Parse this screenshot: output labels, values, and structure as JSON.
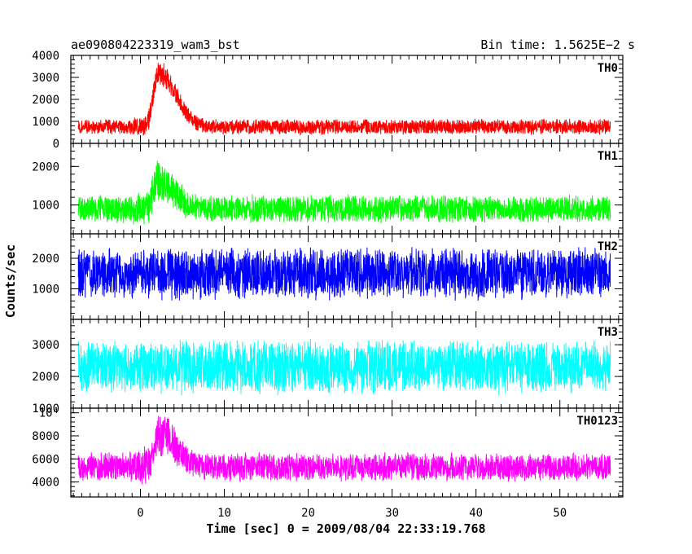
{
  "header": {
    "title": "ae090804223319_wam3_bst",
    "bin_time": "Bin time: 1.5625E−2 s"
  },
  "chart_data": {
    "type": "line",
    "xlabel": "Time [sec] 0 = 2009/08/04 22:33:19.768",
    "ylabel": "Counts/sec",
    "xlim": [
      -8.3,
      57.5
    ],
    "x_ticks": [
      0,
      10,
      20,
      30,
      40,
      50
    ],
    "data_x_range": [
      -7.4,
      56.0
    ],
    "grid": false,
    "panels": [
      {
        "name": "TH0",
        "color": "#ff0000",
        "ylim": [
          0,
          4000
        ],
        "y_ticks": [
          {
            "v": 0,
            "label": "0"
          },
          {
            "v": 1000,
            "label": "1000"
          },
          {
            "v": 2000,
            "label": "2000"
          },
          {
            "v": 3000,
            "label": "3000"
          },
          {
            "v": 4000,
            "label": "4000"
          }
        ],
        "baseline_mean": 750,
        "noise_half_range": 380,
        "burst": {
          "peak_time": 2.2,
          "peak_value": 3200,
          "rise_width": 0.9,
          "decay_width": 2.8
        }
      },
      {
        "name": "TH1",
        "color": "#00ff00",
        "ylim": [
          250,
          2600
        ],
        "y_ticks": [
          {
            "v": 1000,
            "label": "1000"
          },
          {
            "v": 2000,
            "label": "2000"
          }
        ],
        "baseline_mean": 900,
        "noise_half_range": 380,
        "burst": {
          "peak_time": 2.2,
          "peak_value": 1650,
          "rise_width": 0.9,
          "decay_width": 2.5
        }
      },
      {
        "name": "TH2",
        "color": "#0000ff",
        "ylim": [
          0,
          2800
        ],
        "y_ticks": [
          {
            "v": 1000,
            "label": "1000"
          },
          {
            "v": 2000,
            "label": "2000"
          }
        ],
        "baseline_mean": 1500,
        "noise_half_range": 900,
        "burst": null
      },
      {
        "name": "TH3",
        "color": "#00ffff",
        "ylim": [
          1000,
          3800
        ],
        "y_ticks": [
          {
            "v": 1000,
            "label": "1000"
          },
          {
            "v": 2000,
            "label": "2000"
          },
          {
            "v": 3000,
            "label": "3000"
          }
        ],
        "baseline_mean": 2300,
        "noise_half_range": 900,
        "burst": null
      },
      {
        "name": "TH0123",
        "color": "#ff00ff",
        "ylim": [
          2700,
          10400
        ],
        "y_ticks": [
          {
            "v": 4000,
            "label": "4000"
          },
          {
            "v": 6000,
            "label": "6000"
          },
          {
            "v": 8000,
            "label": "8000"
          },
          {
            "v": 10000,
            "label": "10⁴"
          }
        ],
        "baseline_mean": 5300,
        "noise_half_range": 1300,
        "burst": {
          "peak_time": 2.2,
          "peak_value": 8200,
          "rise_width": 0.9,
          "decay_width": 2.8
        }
      }
    ]
  }
}
